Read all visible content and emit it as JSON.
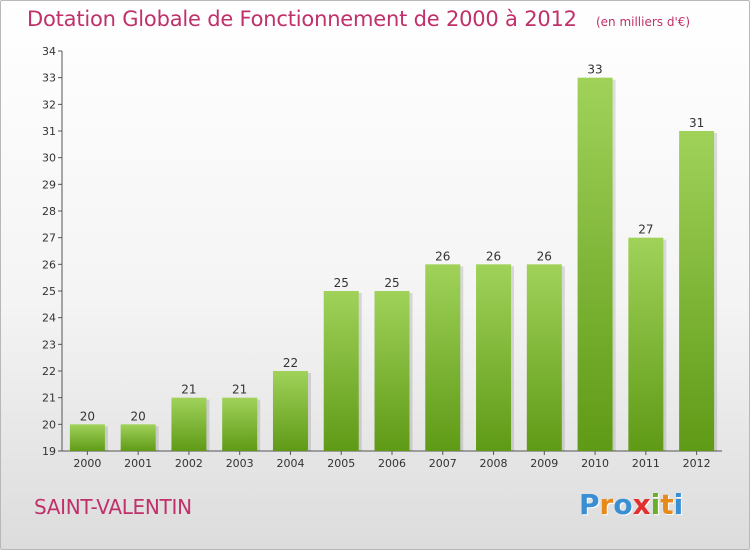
{
  "header": {
    "title": "Dotation Globale de Fonctionnement de 2000 à 2012",
    "subtitle": "(en milliers d'€)"
  },
  "footer": {
    "place": "SAINT-VALENTIN",
    "logo_text": "Proxiti",
    "logo_colors": [
      "#3a8fd4",
      "#e88a1a",
      "#3a8fd4",
      "#e2302e",
      "#6aae2a",
      "#e88a1a",
      "#3a8fd4"
    ]
  },
  "colors": {
    "bar_light": "#a0d25a",
    "bar_dark": "#5f9a16",
    "accent": "#c0306a"
  },
  "chart_data": {
    "type": "bar",
    "title": "Dotation Globale de Fonctionnement de 2000 à 2012",
    "subtitle": "(en milliers d'€)",
    "categories": [
      "2000",
      "2001",
      "2002",
      "2003",
      "2004",
      "2005",
      "2006",
      "2007",
      "2008",
      "2009",
      "2010",
      "2011",
      "2012"
    ],
    "values": [
      20,
      20,
      21,
      21,
      22,
      25,
      25,
      26,
      26,
      26,
      33,
      27,
      31
    ],
    "data_labels": [
      "20",
      "20",
      "21",
      "21",
      "22",
      "25",
      "25",
      "26",
      "26",
      "26",
      "33",
      "27",
      "31"
    ],
    "y_ticks": [
      "19",
      "20",
      "21",
      "22",
      "23",
      "24",
      "25",
      "26",
      "27",
      "28",
      "29",
      "30",
      "31",
      "32",
      "33",
      "34"
    ],
    "ylim": [
      19,
      34
    ],
    "xlabel": "",
    "ylabel": "",
    "grid": false,
    "legend": "none"
  }
}
